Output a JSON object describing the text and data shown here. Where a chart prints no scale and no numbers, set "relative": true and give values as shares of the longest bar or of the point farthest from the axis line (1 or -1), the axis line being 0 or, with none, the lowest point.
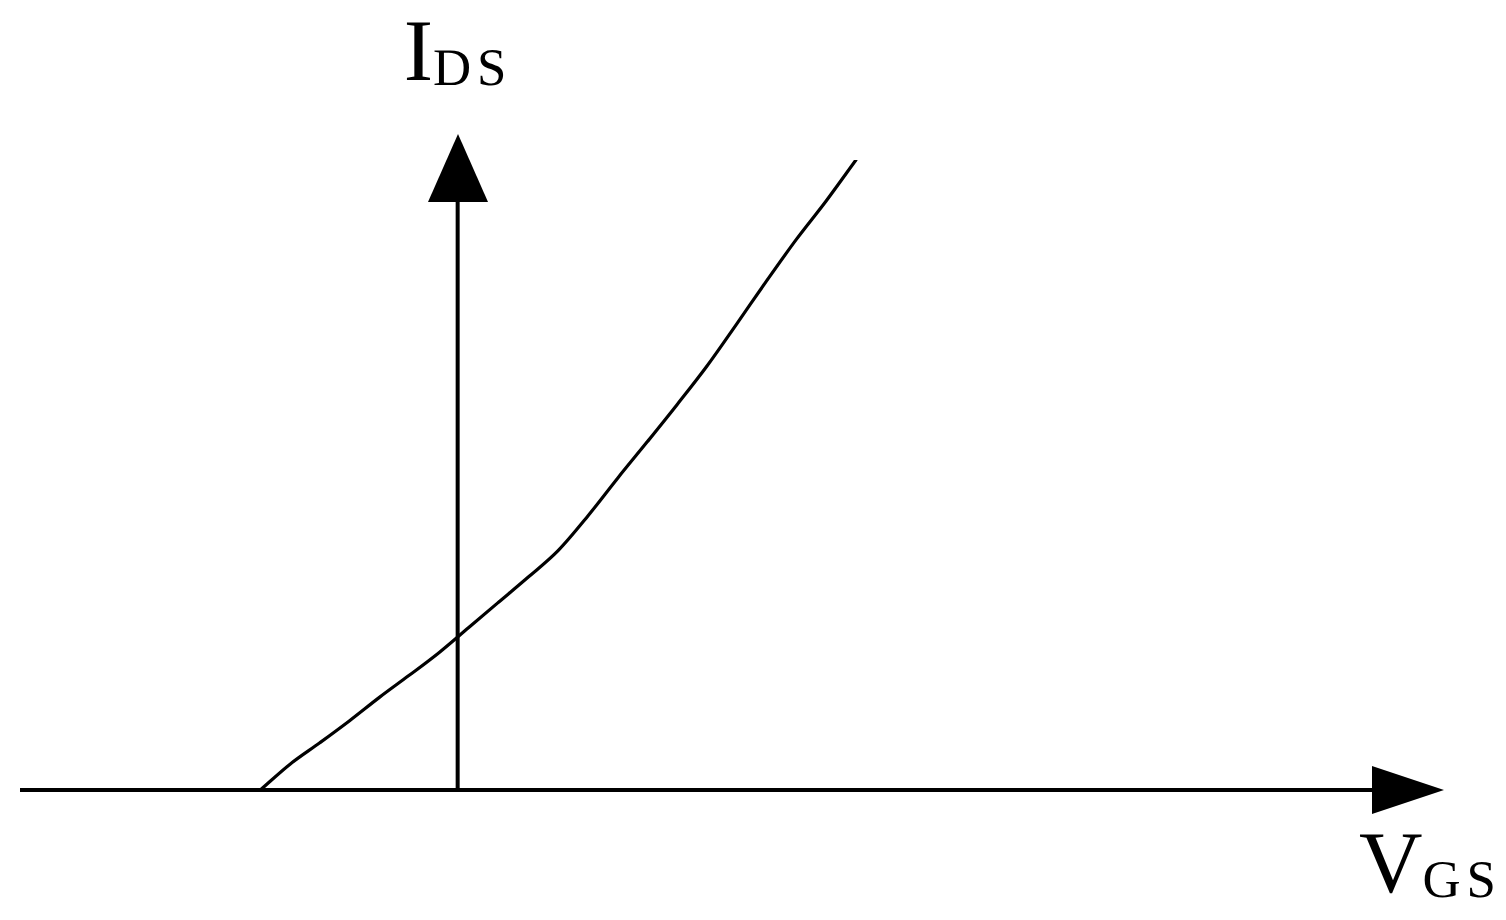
{
  "chart_data": {
    "type": "line",
    "xlabel": "V$_{GS}$",
    "ylabel": "I$_{DS}$",
    "categories": [
      null,
      null,
      null,
      null,
      null,
      null,
      null,
      null,
      null,
      null,
      null,
      null,
      null,
      null,
      null,
      null,
      null,
      null,
      null,
      null,
      null,
      null,
      null,
      null,
      null,
      null,
      null,
      null,
      null,
      null,
      null,
      null,
      null,
      null,
      null,
      null,
      null,
      null,
      null,
      null,
      null,
      null,
      null,
      null,
      null,
      null,
      null
    ],
    "values": [
      null,
      null,
      null,
      null,
      null,
      null,
      null,
      null,
      0,
      0.041,
      0.075,
      0.11,
      0.147,
      0.182,
      0.218,
      0.258,
      0.298,
      0.338,
      0.38,
      0.435,
      0.495,
      0.553,
      0.612,
      0.673,
      0.74,
      0.808,
      0.874,
      0.935,
      1,
      null,
      null,
      null,
      null,
      null,
      null,
      null,
      null,
      null,
      null,
      null,
      null,
      null,
      null,
      null,
      null,
      null,
      null
    ],
    "color": "#000000",
    "relative": true,
    "tick_labels": false,
    "marker": "none"
  }
}
